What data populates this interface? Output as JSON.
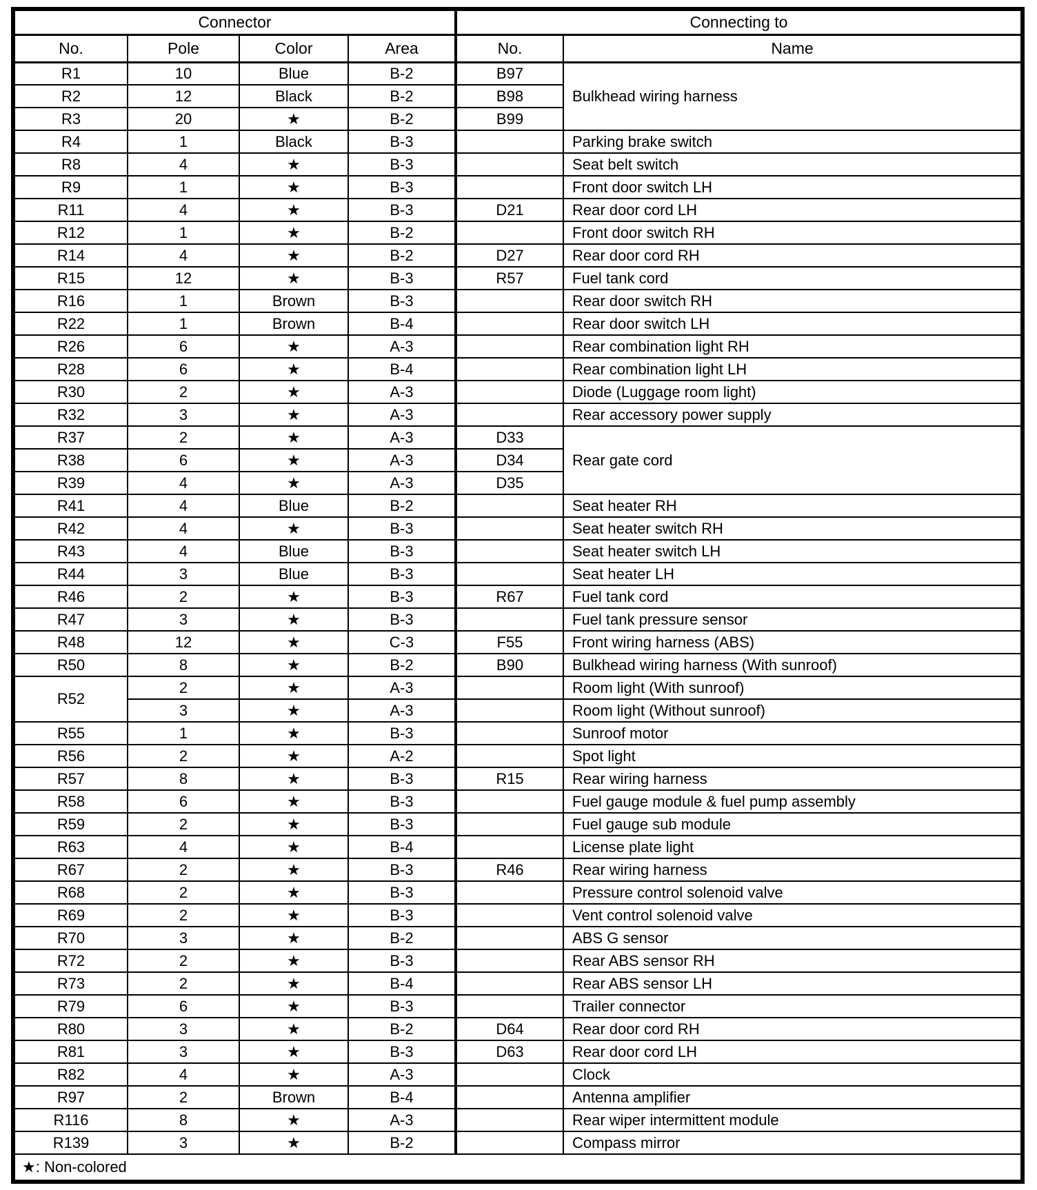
{
  "colors": {
    "ink": "#000000",
    "paper": "#ffffff"
  },
  "table": {
    "group_headers": [
      {
        "label": "Connector",
        "colspan": 4
      },
      {
        "label": "Connecting to",
        "colspan": 2
      }
    ],
    "columns": [
      "No.",
      "Pole",
      "Color",
      "Area",
      "No.",
      "Name"
    ],
    "footnote": "★: Non-colored",
    "star": "★",
    "rows": [
      [
        {
          "t": "R1"
        },
        {
          "t": "10"
        },
        {
          "t": "Blue"
        },
        {
          "t": "B-2"
        },
        {
          "t": "B97"
        },
        {
          "t": "Bulkhead wiring harness",
          "rs": 3
        }
      ],
      [
        {
          "t": "R2"
        },
        {
          "t": "12"
        },
        {
          "t": "Black"
        },
        {
          "t": "B-2"
        },
        {
          "t": "B98"
        }
      ],
      [
        {
          "t": "R3"
        },
        {
          "t": "20"
        },
        {
          "t": "★"
        },
        {
          "t": "B-2"
        },
        {
          "t": "B99"
        }
      ],
      [
        {
          "t": "R4"
        },
        {
          "t": "1"
        },
        {
          "t": "Black"
        },
        {
          "t": "B-3"
        },
        {
          "t": ""
        },
        {
          "t": "Parking brake switch"
        }
      ],
      [
        {
          "t": "R8"
        },
        {
          "t": "4"
        },
        {
          "t": "★"
        },
        {
          "t": "B-3"
        },
        {
          "t": ""
        },
        {
          "t": "Seat belt switch"
        }
      ],
      [
        {
          "t": "R9"
        },
        {
          "t": "1"
        },
        {
          "t": "★"
        },
        {
          "t": "B-3"
        },
        {
          "t": ""
        },
        {
          "t": "Front door switch LH"
        }
      ],
      [
        {
          "t": "R11"
        },
        {
          "t": "4"
        },
        {
          "t": "★"
        },
        {
          "t": "B-3"
        },
        {
          "t": "D21"
        },
        {
          "t": "Rear door cord LH"
        }
      ],
      [
        {
          "t": "R12"
        },
        {
          "t": "1"
        },
        {
          "t": "★"
        },
        {
          "t": "B-2"
        },
        {
          "t": ""
        },
        {
          "t": "Front door switch RH"
        }
      ],
      [
        {
          "t": "R14"
        },
        {
          "t": "4"
        },
        {
          "t": "★"
        },
        {
          "t": "B-2"
        },
        {
          "t": "D27"
        },
        {
          "t": "Rear door cord RH"
        }
      ],
      [
        {
          "t": "R15"
        },
        {
          "t": "12"
        },
        {
          "t": "★"
        },
        {
          "t": "B-3"
        },
        {
          "t": "R57"
        },
        {
          "t": "Fuel tank cord"
        }
      ],
      [
        {
          "t": "R16"
        },
        {
          "t": "1"
        },
        {
          "t": "Brown"
        },
        {
          "t": "B-3"
        },
        {
          "t": ""
        },
        {
          "t": "Rear door switch RH"
        }
      ],
      [
        {
          "t": "R22"
        },
        {
          "t": "1"
        },
        {
          "t": "Brown"
        },
        {
          "t": "B-4"
        },
        {
          "t": ""
        },
        {
          "t": "Rear door switch LH"
        }
      ],
      [
        {
          "t": "R26"
        },
        {
          "t": "6"
        },
        {
          "t": "★"
        },
        {
          "t": "A-3"
        },
        {
          "t": ""
        },
        {
          "t": "Rear combination light RH"
        }
      ],
      [
        {
          "t": "R28"
        },
        {
          "t": "6"
        },
        {
          "t": "★"
        },
        {
          "t": "B-4"
        },
        {
          "t": ""
        },
        {
          "t": "Rear combination light LH"
        }
      ],
      [
        {
          "t": "R30"
        },
        {
          "t": "2"
        },
        {
          "t": "★"
        },
        {
          "t": "A-3"
        },
        {
          "t": ""
        },
        {
          "t": "Diode (Luggage room light)"
        }
      ],
      [
        {
          "t": "R32"
        },
        {
          "t": "3"
        },
        {
          "t": "★"
        },
        {
          "t": "A-3"
        },
        {
          "t": ""
        },
        {
          "t": "Rear accessory power supply"
        }
      ],
      [
        {
          "t": "R37"
        },
        {
          "t": "2"
        },
        {
          "t": "★"
        },
        {
          "t": "A-3"
        },
        {
          "t": "D33"
        },
        {
          "t": "Rear gate cord",
          "rs": 3
        }
      ],
      [
        {
          "t": "R38"
        },
        {
          "t": "6"
        },
        {
          "t": "★"
        },
        {
          "t": "A-3"
        },
        {
          "t": "D34"
        }
      ],
      [
        {
          "t": "R39"
        },
        {
          "t": "4"
        },
        {
          "t": "★"
        },
        {
          "t": "A-3"
        },
        {
          "t": "D35"
        }
      ],
      [
        {
          "t": "R41"
        },
        {
          "t": "4"
        },
        {
          "t": "Blue"
        },
        {
          "t": "B-2"
        },
        {
          "t": ""
        },
        {
          "t": "Seat heater RH"
        }
      ],
      [
        {
          "t": "R42"
        },
        {
          "t": "4"
        },
        {
          "t": "★"
        },
        {
          "t": "B-3"
        },
        {
          "t": ""
        },
        {
          "t": "Seat heater switch RH"
        }
      ],
      [
        {
          "t": "R43"
        },
        {
          "t": "4"
        },
        {
          "t": "Blue"
        },
        {
          "t": "B-3"
        },
        {
          "t": ""
        },
        {
          "t": "Seat heater switch LH"
        }
      ],
      [
        {
          "t": "R44"
        },
        {
          "t": "3"
        },
        {
          "t": "Blue"
        },
        {
          "t": "B-3"
        },
        {
          "t": ""
        },
        {
          "t": "Seat heater LH"
        }
      ],
      [
        {
          "t": "R46"
        },
        {
          "t": "2"
        },
        {
          "t": "★"
        },
        {
          "t": "B-3"
        },
        {
          "t": "R67"
        },
        {
          "t": "Fuel tank cord"
        }
      ],
      [
        {
          "t": "R47"
        },
        {
          "t": "3"
        },
        {
          "t": "★"
        },
        {
          "t": "B-3"
        },
        {
          "t": ""
        },
        {
          "t": "Fuel tank pressure sensor"
        }
      ],
      [
        {
          "t": "R48"
        },
        {
          "t": "12"
        },
        {
          "t": "★"
        },
        {
          "t": "C-3"
        },
        {
          "t": "F55"
        },
        {
          "t": "Front wiring harness (ABS)"
        }
      ],
      [
        {
          "t": "R50"
        },
        {
          "t": "8"
        },
        {
          "t": "★"
        },
        {
          "t": "B-2"
        },
        {
          "t": "B90"
        },
        {
          "t": "Bulkhead wiring harness (With sunroof)"
        }
      ],
      [
        {
          "t": "R52",
          "rs": 2
        },
        {
          "t": "2"
        },
        {
          "t": "★"
        },
        {
          "t": "A-3"
        },
        {
          "t": ""
        },
        {
          "t": "Room light (With sunroof)"
        }
      ],
      [
        {
          "t": "3"
        },
        {
          "t": "★"
        },
        {
          "t": "A-3"
        },
        {
          "t": ""
        },
        {
          "t": "Room light (Without sunroof)"
        }
      ],
      [
        {
          "t": "R55"
        },
        {
          "t": "1"
        },
        {
          "t": "★"
        },
        {
          "t": "B-3"
        },
        {
          "t": ""
        },
        {
          "t": "Sunroof motor"
        }
      ],
      [
        {
          "t": "R56"
        },
        {
          "t": "2"
        },
        {
          "t": "★"
        },
        {
          "t": "A-2"
        },
        {
          "t": ""
        },
        {
          "t": "Spot light"
        }
      ],
      [
        {
          "t": "R57"
        },
        {
          "t": "8"
        },
        {
          "t": "★"
        },
        {
          "t": "B-3"
        },
        {
          "t": "R15"
        },
        {
          "t": "Rear wiring harness"
        }
      ],
      [
        {
          "t": "R58"
        },
        {
          "t": "6"
        },
        {
          "t": "★"
        },
        {
          "t": "B-3"
        },
        {
          "t": ""
        },
        {
          "t": "Fuel gauge module & fuel pump assembly"
        }
      ],
      [
        {
          "t": "R59"
        },
        {
          "t": "2"
        },
        {
          "t": "★"
        },
        {
          "t": "B-3"
        },
        {
          "t": ""
        },
        {
          "t": "Fuel gauge sub module"
        }
      ],
      [
        {
          "t": "R63"
        },
        {
          "t": "4"
        },
        {
          "t": "★"
        },
        {
          "t": "B-4"
        },
        {
          "t": ""
        },
        {
          "t": "License plate light"
        }
      ],
      [
        {
          "t": "R67"
        },
        {
          "t": "2"
        },
        {
          "t": "★"
        },
        {
          "t": "B-3"
        },
        {
          "t": "R46"
        },
        {
          "t": "Rear wiring harness"
        }
      ],
      [
        {
          "t": "R68"
        },
        {
          "t": "2"
        },
        {
          "t": "★"
        },
        {
          "t": "B-3"
        },
        {
          "t": ""
        },
        {
          "t": "Pressure control solenoid valve"
        }
      ],
      [
        {
          "t": "R69"
        },
        {
          "t": "2"
        },
        {
          "t": "★"
        },
        {
          "t": "B-3"
        },
        {
          "t": ""
        },
        {
          "t": "Vent control solenoid valve"
        }
      ],
      [
        {
          "t": "R70"
        },
        {
          "t": "3"
        },
        {
          "t": "★"
        },
        {
          "t": "B-2"
        },
        {
          "t": ""
        },
        {
          "t": "ABS G sensor"
        }
      ],
      [
        {
          "t": "R72"
        },
        {
          "t": "2"
        },
        {
          "t": "★"
        },
        {
          "t": "B-3"
        },
        {
          "t": ""
        },
        {
          "t": "Rear ABS sensor RH"
        }
      ],
      [
        {
          "t": "R73"
        },
        {
          "t": "2"
        },
        {
          "t": "★"
        },
        {
          "t": "B-4"
        },
        {
          "t": ""
        },
        {
          "t": "Rear ABS sensor LH"
        }
      ],
      [
        {
          "t": "R79"
        },
        {
          "t": "6"
        },
        {
          "t": "★"
        },
        {
          "t": "B-3"
        },
        {
          "t": ""
        },
        {
          "t": "Trailer connector"
        }
      ],
      [
        {
          "t": "R80"
        },
        {
          "t": "3"
        },
        {
          "t": "★"
        },
        {
          "t": "B-2"
        },
        {
          "t": "D64"
        },
        {
          "t": "Rear door cord RH"
        }
      ],
      [
        {
          "t": "R81"
        },
        {
          "t": "3"
        },
        {
          "t": "★"
        },
        {
          "t": "B-3"
        },
        {
          "t": "D63"
        },
        {
          "t": "Rear door cord LH"
        }
      ],
      [
        {
          "t": "R82"
        },
        {
          "t": "4"
        },
        {
          "t": "★"
        },
        {
          "t": "A-3"
        },
        {
          "t": ""
        },
        {
          "t": "Clock"
        }
      ],
      [
        {
          "t": "R97"
        },
        {
          "t": "2"
        },
        {
          "t": "Brown"
        },
        {
          "t": "B-4"
        },
        {
          "t": ""
        },
        {
          "t": "Antenna amplifier"
        }
      ],
      [
        {
          "t": "R116"
        },
        {
          "t": "8"
        },
        {
          "t": "★"
        },
        {
          "t": "A-3"
        },
        {
          "t": ""
        },
        {
          "t": "Rear wiper intermittent module"
        }
      ],
      [
        {
          "t": "R139"
        },
        {
          "t": "3"
        },
        {
          "t": "★"
        },
        {
          "t": "B-2"
        },
        {
          "t": ""
        },
        {
          "t": "Compass mirror"
        }
      ]
    ]
  }
}
